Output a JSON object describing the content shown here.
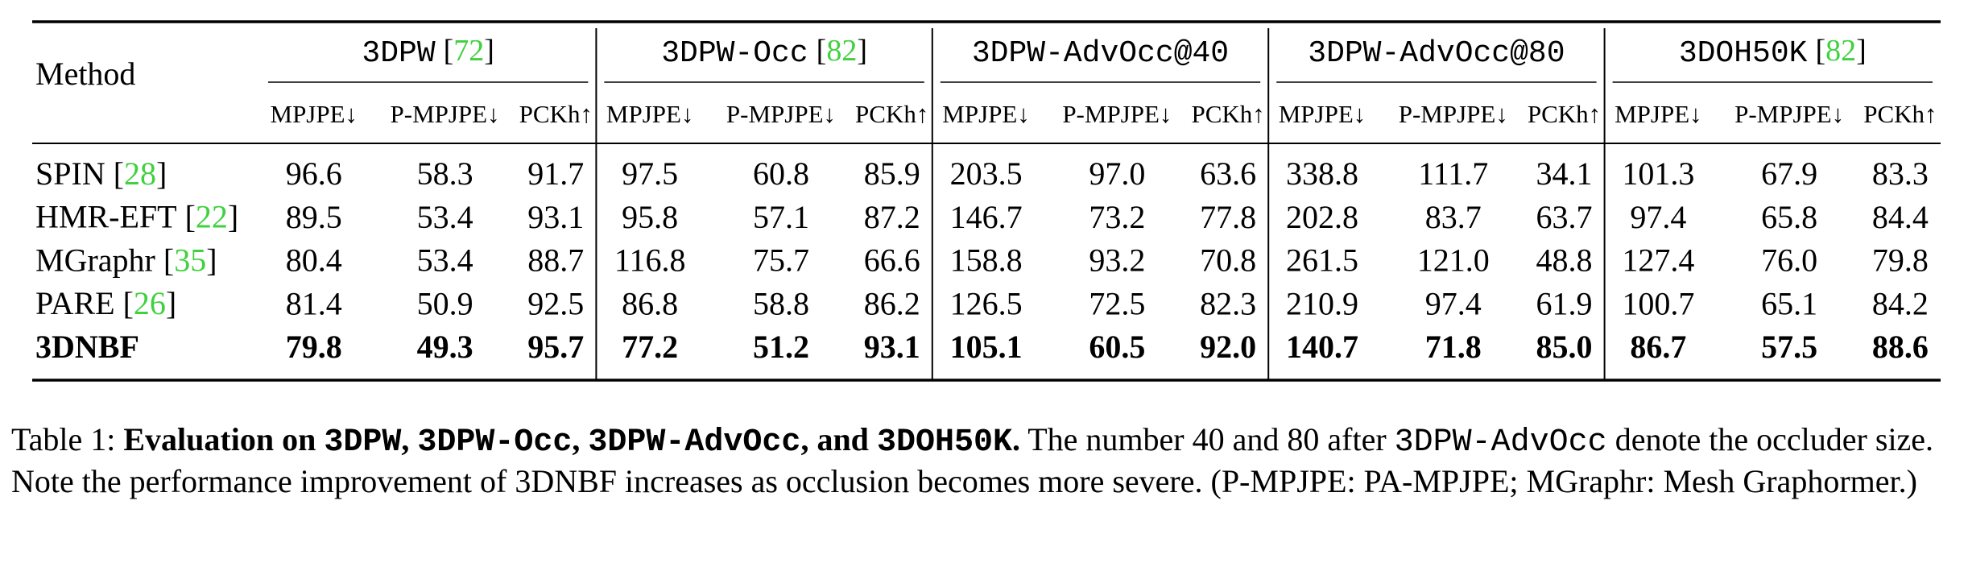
{
  "table": {
    "method_header": "Method",
    "groups": [
      {
        "name": "3DPW",
        "ref": "[72]"
      },
      {
        "name": "3DPW-Occ",
        "ref": "[82]"
      },
      {
        "name": "3DPW-AdvOcc@40"
      },
      {
        "name": "3DPW-AdvOcc@80"
      },
      {
        "name": "3DOH50K",
        "ref": "[82]"
      }
    ],
    "metrics": [
      "MPJPE↓",
      "P-MPJPE↓",
      "PCKh↑"
    ],
    "rows": [
      {
        "method": "SPIN",
        "ref": "[28]",
        "values": [
          "96.6",
          "58.3",
          "91.7",
          "97.5",
          "60.8",
          "85.9",
          "203.5",
          "97.0",
          "63.6",
          "338.8",
          "111.7",
          "34.1",
          "101.3",
          "67.9",
          "83.3"
        ]
      },
      {
        "method": "HMR-EFT",
        "ref": "[22]",
        "values": [
          "89.5",
          "53.4",
          "93.1",
          "95.8",
          "57.1",
          "87.2",
          "146.7",
          "73.2",
          "77.8",
          "202.8",
          "83.7",
          "63.7",
          "97.4",
          "65.8",
          "84.4"
        ]
      },
      {
        "method": "MGraphr",
        "ref": "[35]",
        "values": [
          "80.4",
          "53.4",
          "88.7",
          "116.8",
          "75.7",
          "66.6",
          "158.8",
          "93.2",
          "70.8",
          "261.5",
          "121.0",
          "48.8",
          "127.4",
          "76.0",
          "79.8"
        ]
      },
      {
        "method": "PARE",
        "ref": "[26]",
        "values": [
          "81.4",
          "50.9",
          "92.5",
          "86.8",
          "58.8",
          "86.2",
          "126.5",
          "72.5",
          "82.3",
          "210.9",
          "97.4",
          "61.9",
          "100.7",
          "65.1",
          "84.2"
        ]
      },
      {
        "method": "3DNBF",
        "bold": true,
        "values": [
          "79.8",
          "49.3",
          "95.7",
          "77.2",
          "51.2",
          "93.1",
          "105.1",
          "60.5",
          "92.0",
          "140.7",
          "71.8",
          "85.0",
          "86.7",
          "57.5",
          "88.6"
        ]
      }
    ]
  },
  "caption": {
    "segments": [
      {
        "text": "Table 1: ",
        "style": "normal"
      },
      {
        "text": "Evaluation on ",
        "style": "bold"
      },
      {
        "text": "3DPW",
        "style": "bold-mono"
      },
      {
        "text": ", ",
        "style": "bold"
      },
      {
        "text": "3DPW-Occ",
        "style": "bold-mono"
      },
      {
        "text": ", ",
        "style": "bold"
      },
      {
        "text": "3DPW-AdvOcc",
        "style": "bold-mono"
      },
      {
        "text": ", and ",
        "style": "bold"
      },
      {
        "text": "3DOH50K",
        "style": "bold-mono"
      },
      {
        "text": ".",
        "style": "bold"
      },
      {
        "text": " The number 40 and 80 after ",
        "style": "normal"
      },
      {
        "text": "3DPW-AdvOcc",
        "style": "mono"
      },
      {
        "text": " denote the occluder size. Note the performance improvement of 3DNBF increases as occlusion becomes more severe. (P-MPJPE: PA-MPJPE; MGraphr: Mesh Graphormer.)",
        "style": "normal"
      }
    ]
  }
}
